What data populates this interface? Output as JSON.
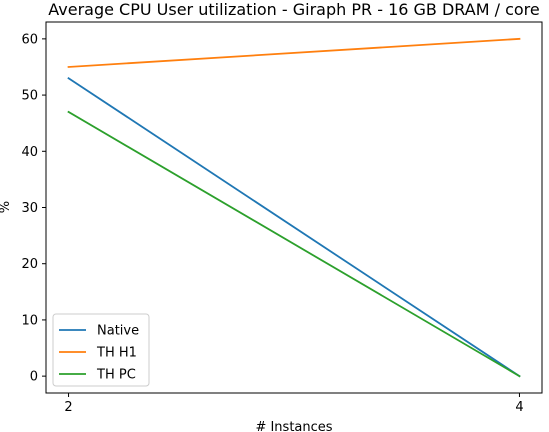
{
  "chart_data": {
    "type": "line",
    "title": "Average CPU User utilization - Giraph PR - 16 GB DRAM / core",
    "xlabel": "# Instances",
    "ylabel": "%",
    "x": [
      2,
      4
    ],
    "x_ticks": [
      2,
      4
    ],
    "xlim": [
      1.9,
      4.1
    ],
    "ylim": [
      -3,
      63
    ],
    "y_ticks": [
      0,
      10,
      20,
      30,
      40,
      50,
      60
    ],
    "grid": false,
    "legend_position": "lower-left",
    "series": [
      {
        "name": "Native",
        "values": [
          53,
          0
        ],
        "color": "#1f77b4"
      },
      {
        "name": "TH H1",
        "values": [
          55,
          60
        ],
        "color": "#ff7f0e"
      },
      {
        "name": "TH PC",
        "values": [
          47,
          0
        ],
        "color": "#2ca02c"
      }
    ]
  }
}
